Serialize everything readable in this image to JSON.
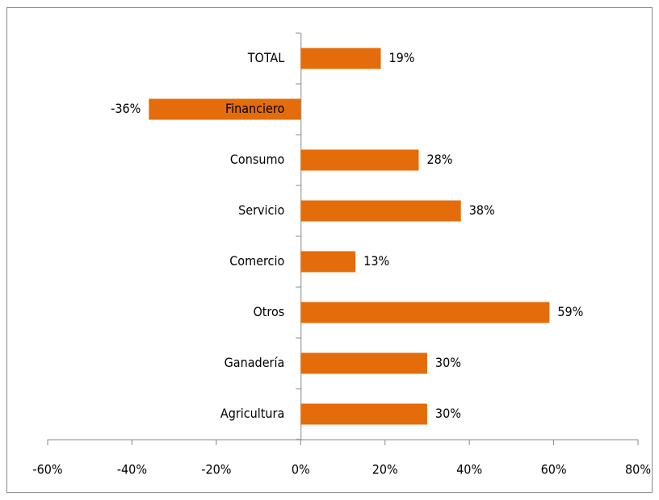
{
  "chart_data": {
    "type": "bar",
    "orientation": "horizontal",
    "categories": [
      "TOTAL",
      "Financiero",
      "Consumo",
      "Servicio",
      "Comercio",
      "Otros",
      "Ganadería",
      "Agricultura"
    ],
    "values": [
      19,
      -36,
      28,
      38,
      13,
      59,
      30,
      30
    ],
    "value_labels": [
      "19%",
      "-36%",
      "28%",
      "38%",
      "13%",
      "59%",
      "30%",
      "30%"
    ],
    "color": "#e46c0a",
    "xlim": [
      -60,
      80
    ],
    "xticks": [
      {
        "value": -60,
        "label": "-60%"
      },
      {
        "value": -40,
        "label": "-40%"
      },
      {
        "value": -20,
        "label": "-20%"
      },
      {
        "value": 0,
        "label": "0%"
      },
      {
        "value": 20,
        "label": "20%"
      },
      {
        "value": 40,
        "label": "40%"
      },
      {
        "value": 60,
        "label": "60%"
      },
      {
        "value": 80,
        "label": "80%"
      }
    ],
    "grid": false
  }
}
